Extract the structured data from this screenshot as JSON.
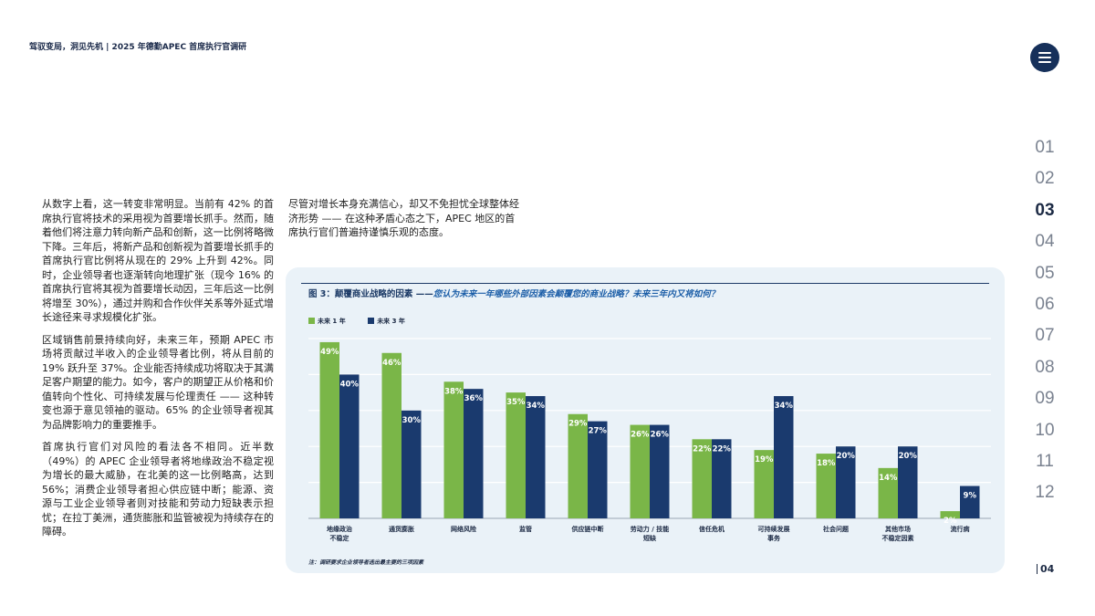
{
  "header": {
    "text": "驾驭变局，洞见先机 | 2025 年德勤APEC 首席执行官调研"
  },
  "nav": {
    "pages": [
      "01",
      "02",
      "03",
      "04",
      "05",
      "06",
      "07",
      "08",
      "09",
      "10",
      "11",
      "12"
    ],
    "active_index": 2,
    "page_number": "04"
  },
  "body": {
    "col1": [
      "从数字上看，这一转变非常明显。当前有 42% 的首席执行官将技术的采用视为首要增长抓手。然而，随着他们将注意力转向新产品和创新，这一比例将略微下降。三年后，将新产品和创新视为首要增长抓手的首席执行官比例将从现在的 29% 上升到 42%。同时，企业领导者也逐渐转向地理扩张（现今 16% 的首席执行官将其视为首要增长动因，三年后这一比例将增至 30%），通过并购和合作伙伴关系等外延式增长途径来寻求规模化扩张。",
      "区域销售前景持续向好，未来三年，预期 APEC 市场将贡献过半收入的企业领导者比例，将从目前的 19% 跃升至 37%。企业能否持续成功将取决于其满足客户期望的能力。如今，客户的期望正从价格和价值转向个性化、可持续发展与伦理责任 —— 这种转变也源于意见领袖的驱动。65% 的企业领导者视其为品牌影响力的重要推手。",
      "首席执行官们对风险的看法各不相同。近半数（49%）的 APEC 企业领导者将地缘政治不稳定视为增长的最大威胁，在北美的这一比例略高，达到 56%；消费企业领导者担心供应链中断；能源、资源与工业企业领导者则对技能和劳动力短缺表示担忧；在拉丁美洲，通货膨胀和监管被视为持续存在的障碍。"
    ],
    "col2": "尽管对增长本身充满信心，却又不免担忧全球整体经济形势 —— 在这种矛盾心态之下，APEC 地区的首席执行官们普遍持谨慎乐观的态度。"
  },
  "figure": {
    "title_lead": "图 3：颠覆商业战略的因素 ——",
    "title_question": "您认为未来一年哪些外部因素会颠覆您的商业战略？未来三年内又将如何？",
    "note": "注：调研要求企业领导者选出最主要的三项因素",
    "colors": {
      "year1": "#7ab648",
      "year3": "#1a3a6e",
      "bg": "#eaf2f8"
    }
  },
  "chart_data": {
    "type": "bar",
    "categories": [
      [
        "地缘政治",
        "不稳定"
      ],
      [
        "通货膨胀"
      ],
      [
        "网络风险"
      ],
      [
        "监管"
      ],
      [
        "供应链中断"
      ],
      [
        "劳动力 / 技能",
        "短缺"
      ],
      [
        "信任危机"
      ],
      [
        "可持续发展",
        "事务"
      ],
      [
        "社会问题"
      ],
      [
        "其他市场",
        "不稳定因素"
      ],
      [
        "流行病"
      ]
    ],
    "series": [
      {
        "name": "未来 1 年",
        "values": [
          49,
          46,
          38,
          35,
          29,
          26,
          22,
          19,
          18,
          14,
          2
        ]
      },
      {
        "name": "未来 3 年",
        "values": [
          40,
          30,
          36,
          34,
          27,
          26,
          22,
          34,
          20,
          20,
          9
        ]
      }
    ],
    "value_suffix": "%",
    "ylim": [
      0,
      50
    ],
    "grid": true,
    "legend": "top-left"
  }
}
